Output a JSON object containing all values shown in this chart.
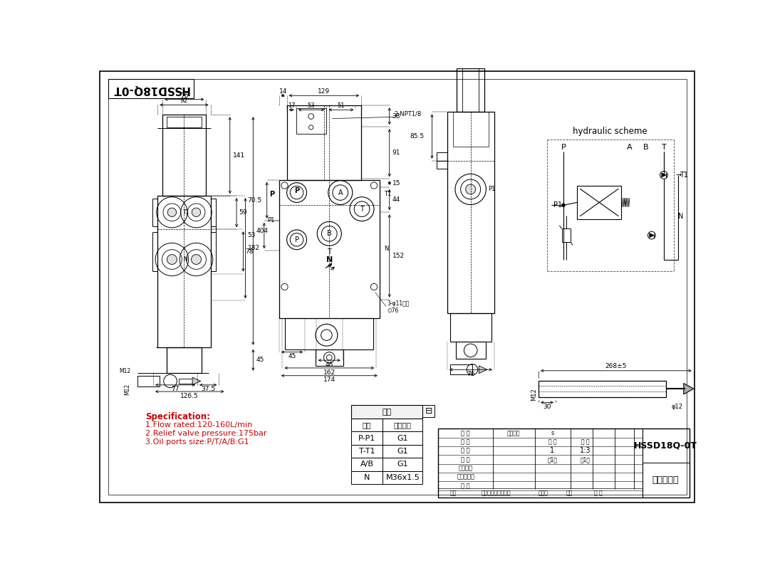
{
  "bg_color": "#ffffff",
  "lc": "#000000",
  "title_text": "HSSD18Q-0T",
  "spec_title": "Specification:",
  "spec_color": "#cc0000",
  "spec_lines": [
    "1.Flow rated:120-160L/min",
    "2.Relief valve pressure:175bar",
    "3.Oil ports size:P/T/A/B:G1"
  ],
  "table_header": "阀体",
  "table_col1": "接口",
  "table_col2": "美制螺纹",
  "table_rows": [
    [
      "P-P1",
      "G1"
    ],
    [
      "T-T1",
      "G1"
    ],
    [
      "A/B",
      "G1"
    ],
    [
      "N",
      "M36x1.5"
    ]
  ],
  "hydraulic_title": "hydraulic scheme",
  "bottom_right_title": "HSSD18Q-0T",
  "bottom_right_subtitle": "一联多路阀",
  "tb_rows": [
    [
      "设 计",
      "图样标记",
      "s"
    ],
    [
      "制 图",
      "数 量",
      "比 例"
    ],
    [
      "描 图",
      "1",
      "1:3"
    ],
    [
      "校 对",
      "共1张",
      "第1张"
    ],
    [
      "工艺检查",
      "",
      ""
    ],
    [
      "标准化审查",
      "",
      ""
    ],
    [
      "审 批",
      "",
      ""
    ]
  ]
}
